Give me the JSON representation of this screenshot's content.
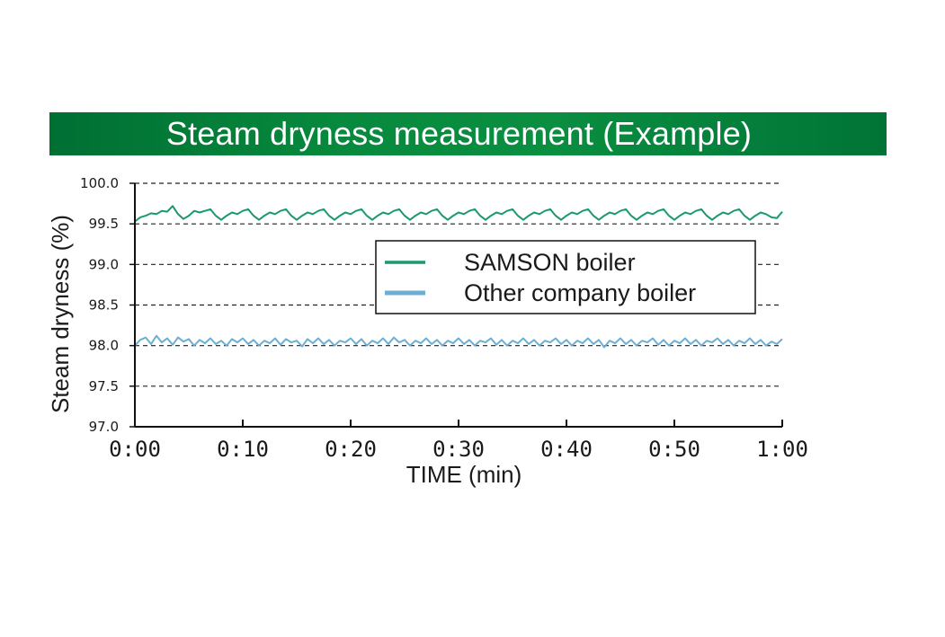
{
  "chart_data": {
    "type": "line",
    "title": "Steam dryness measurement (Example)",
    "xlabel": "TIME (min)",
    "ylabel": "Steam dryness (%)",
    "x_ticks": [
      "0:00",
      "0:10",
      "0:20",
      "0:30",
      "0:40",
      "0:50",
      "1:00"
    ],
    "y_ticks": [
      "97.0",
      "97.5",
      "98.0",
      "98.5",
      "99.0",
      "99.5",
      "100.0"
    ],
    "xlim": [
      0,
      60
    ],
    "ylim": [
      97.0,
      100.0
    ],
    "grid": "horizontal dashed",
    "legend_position": "center-right",
    "series": [
      {
        "name": "SAMSON boiler",
        "color": "#1a9a6c",
        "x": [
          0,
          0.5,
          1,
          1.5,
          2,
          2.5,
          3,
          3.5,
          4,
          4.5,
          5,
          5.5,
          6,
          6.5,
          7,
          7.5,
          8,
          8.5,
          9,
          9.5,
          10,
          10.5,
          11,
          11.5,
          12,
          12.5,
          13,
          13.5,
          14,
          14.5,
          15,
          15.5,
          16,
          16.5,
          17,
          17.5,
          18,
          18.5,
          19,
          19.5,
          20,
          20.5,
          21,
          21.5,
          22,
          22.5,
          23,
          23.5,
          24,
          24.5,
          25,
          25.5,
          26,
          26.5,
          27,
          27.5,
          28,
          28.5,
          29,
          29.5,
          30,
          30.5,
          31,
          31.5,
          32,
          32.5,
          33,
          33.5,
          34,
          34.5,
          35,
          35.5,
          36,
          36.5,
          37,
          37.5,
          38,
          38.5,
          39,
          39.5,
          40,
          40.5,
          41,
          41.5,
          42,
          42.5,
          43,
          43.5,
          44,
          44.5,
          45,
          45.5,
          46,
          46.5,
          47,
          47.5,
          48,
          48.5,
          49,
          49.5,
          50,
          50.5,
          51,
          51.5,
          52,
          52.5,
          53,
          53.5,
          54,
          54.5,
          55,
          55.5,
          56,
          56.5,
          57,
          57.5,
          58,
          58.5,
          59,
          59.5,
          60
        ],
        "values": [
          99.53,
          99.58,
          99.6,
          99.63,
          99.62,
          99.66,
          99.65,
          99.72,
          99.62,
          99.56,
          99.6,
          99.66,
          99.64,
          99.66,
          99.68,
          99.6,
          99.55,
          99.6,
          99.64,
          99.62,
          99.66,
          99.68,
          99.6,
          99.55,
          99.6,
          99.64,
          99.62,
          99.66,
          99.68,
          99.6,
          99.55,
          99.6,
          99.64,
          99.62,
          99.66,
          99.68,
          99.6,
          99.55,
          99.6,
          99.64,
          99.62,
          99.66,
          99.68,
          99.6,
          99.55,
          99.6,
          99.64,
          99.62,
          99.66,
          99.68,
          99.6,
          99.55,
          99.6,
          99.64,
          99.62,
          99.66,
          99.68,
          99.6,
          99.55,
          99.6,
          99.64,
          99.62,
          99.66,
          99.68,
          99.6,
          99.55,
          99.6,
          99.64,
          99.62,
          99.66,
          99.68,
          99.6,
          99.55,
          99.6,
          99.64,
          99.62,
          99.66,
          99.68,
          99.6,
          99.55,
          99.6,
          99.64,
          99.62,
          99.66,
          99.68,
          99.6,
          99.55,
          99.6,
          99.64,
          99.62,
          99.66,
          99.68,
          99.6,
          99.55,
          99.6,
          99.64,
          99.62,
          99.66,
          99.68,
          99.6,
          99.55,
          99.6,
          99.64,
          99.62,
          99.66,
          99.68,
          99.6,
          99.55,
          99.6,
          99.64,
          99.62,
          99.66,
          99.68,
          99.6,
          99.55,
          99.6,
          99.64,
          99.62,
          99.58,
          99.57,
          99.65
        ]
      },
      {
        "name": "Other company boiler",
        "color": "#6cafd2",
        "x": [
          0,
          0.5,
          1,
          1.5,
          2,
          2.5,
          3,
          3.5,
          4,
          4.5,
          5,
          5.5,
          6,
          6.5,
          7,
          7.5,
          8,
          8.5,
          9,
          9.5,
          10,
          10.5,
          11,
          11.5,
          12,
          12.5,
          13,
          13.5,
          14,
          14.5,
          15,
          15.5,
          16,
          16.5,
          17,
          17.5,
          18,
          18.5,
          19,
          19.5,
          20,
          20.5,
          21,
          21.5,
          22,
          22.5,
          23,
          23.5,
          24,
          24.5,
          25,
          25.5,
          26,
          26.5,
          27,
          27.5,
          28,
          28.5,
          29,
          29.5,
          30,
          30.5,
          31,
          31.5,
          32,
          32.5,
          33,
          33.5,
          34,
          34.5,
          35,
          35.5,
          36,
          36.5,
          37,
          37.5,
          38,
          38.5,
          39,
          39.5,
          40,
          40.5,
          41,
          41.5,
          42,
          42.5,
          43,
          43.5,
          44,
          44.5,
          45,
          45.5,
          46,
          46.5,
          47,
          47.5,
          48,
          48.5,
          49,
          49.5,
          50,
          50.5,
          51,
          51.5,
          52,
          52.5,
          53,
          53.5,
          54,
          54.5,
          55,
          55.5,
          56,
          56.5,
          57,
          57.5,
          58,
          58.5,
          59,
          59.5,
          60
        ],
        "values": [
          98.0,
          98.07,
          98.1,
          98.02,
          98.12,
          98.04,
          98.09,
          98.01,
          98.1,
          98.05,
          98.08,
          98.0,
          98.07,
          98.03,
          98.09,
          98.02,
          98.06,
          98.0,
          98.08,
          98.04,
          98.09,
          98.02,
          98.07,
          98.0,
          98.06,
          98.03,
          98.09,
          98.01,
          98.08,
          98.04,
          98.06,
          97.99,
          98.08,
          98.03,
          98.09,
          98.02,
          98.07,
          98.0,
          98.06,
          98.04,
          98.09,
          98.02,
          98.08,
          98.0,
          98.06,
          98.03,
          98.09,
          98.02,
          98.1,
          98.04,
          98.07,
          98.0,
          98.06,
          98.03,
          98.09,
          98.02,
          98.07,
          98.0,
          98.06,
          98.03,
          98.09,
          98.02,
          98.07,
          98.0,
          98.06,
          98.04,
          98.09,
          98.01,
          98.07,
          98.0,
          98.06,
          98.03,
          98.09,
          98.02,
          98.07,
          98.0,
          98.06,
          98.04,
          98.09,
          98.02,
          98.07,
          98.0,
          98.06,
          98.03,
          98.09,
          98.02,
          98.07,
          97.98,
          98.06,
          98.03,
          98.09,
          98.02,
          98.07,
          98.0,
          98.06,
          98.04,
          98.09,
          98.01,
          98.07,
          98.0,
          98.06,
          98.03,
          98.09,
          98.02,
          98.07,
          98.0,
          98.06,
          98.04,
          98.09,
          98.02,
          98.07,
          98.0,
          98.06,
          98.03,
          98.09,
          98.02,
          98.07,
          98.0,
          98.05,
          98.02,
          98.08
        ]
      }
    ]
  }
}
